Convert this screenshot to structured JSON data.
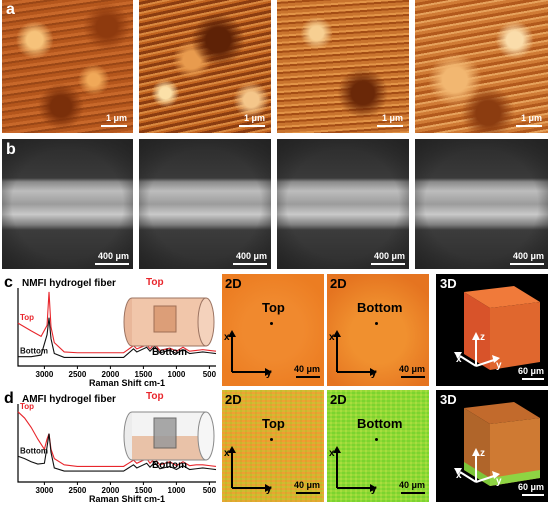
{
  "panel_labels": {
    "a": "a",
    "b": "b",
    "c": "c",
    "d": "d"
  },
  "afm_scale": "1 μm",
  "sem_scale": "400 μm",
  "panel_c": {
    "title": "NMFI hydrogel fiber",
    "map_2d_label": "2D",
    "map_3d_label": "3D",
    "top_label": "Top",
    "bottom_label": "Bottom",
    "scale_2d": "40 μm",
    "scale_3d": "60 μm",
    "axis_x": "x",
    "axis_y": "y",
    "axis_z": "z"
  },
  "panel_d": {
    "title": "AMFI hydrogel fiber",
    "map_2d_label": "2D",
    "map_3d_label": "3D",
    "top_label": "Top",
    "bottom_label": "Bottom",
    "scale_2d": "40 μm",
    "scale_3d": "60 μm",
    "axis_x": "x",
    "axis_y": "y",
    "axis_z": "z"
  },
  "chart_data": [
    {
      "type": "line",
      "xlabel": "Raman Shift cm-1",
      "xticks": [
        3000,
        2500,
        2000,
        1500,
        1000,
        500
      ],
      "xlim": [
        3400,
        400
      ],
      "series": [
        {
          "name": "Top",
          "color": "#e8262c",
          "x": [
            3400,
            3200,
            3050,
            2960,
            2930,
            2900,
            2850,
            2700,
            2500,
            2200,
            1800,
            1650,
            1600,
            1450,
            1400,
            1330,
            1250,
            1100,
            1000,
            900,
            800,
            700,
            600,
            500,
            400
          ],
          "y": [
            0.55,
            0.45,
            0.38,
            0.52,
            0.95,
            0.5,
            0.3,
            0.18,
            0.17,
            0.17,
            0.17,
            0.26,
            0.22,
            0.27,
            0.22,
            0.28,
            0.2,
            0.23,
            0.19,
            0.24,
            0.19,
            0.2,
            0.21,
            0.2,
            0.19
          ]
        },
        {
          "name": "Bottom",
          "color": "#111111",
          "x": [
            3400,
            3200,
            3050,
            2960,
            2930,
            2900,
            2850,
            2700,
            2500,
            2200,
            1800,
            1650,
            1600,
            1450,
            1400,
            1330,
            1250,
            1100,
            1000,
            900,
            800,
            700,
            600,
            500,
            400
          ],
          "y": [
            0.12,
            0.12,
            0.14,
            0.4,
            0.62,
            0.35,
            0.16,
            0.11,
            0.11,
            0.11,
            0.11,
            0.22,
            0.18,
            0.24,
            0.19,
            0.25,
            0.17,
            0.2,
            0.16,
            0.21,
            0.16,
            0.17,
            0.18,
            0.17,
            0.16
          ]
        }
      ]
    },
    {
      "type": "line",
      "xlabel": "Raman Shift cm-1",
      "xticks": [
        3000,
        2500,
        2000,
        1500,
        1000,
        500
      ],
      "xlim": [
        3400,
        400
      ],
      "series": [
        {
          "name": "Top",
          "color": "#e8262c",
          "x": [
            3400,
            3300,
            3200,
            3100,
            3000,
            2960,
            2930,
            2900,
            2850,
            2700,
            2500,
            2200,
            1800,
            1650,
            1600,
            1450,
            1400,
            1330,
            1250,
            1100,
            1000,
            900,
            800,
            700,
            600,
            500,
            400
          ],
          "y": [
            0.9,
            0.82,
            0.7,
            0.55,
            0.42,
            0.55,
            0.62,
            0.42,
            0.3,
            0.22,
            0.2,
            0.2,
            0.2,
            0.28,
            0.24,
            0.3,
            0.24,
            0.3,
            0.22,
            0.26,
            0.21,
            0.26,
            0.21,
            0.22,
            0.22,
            0.21,
            0.2
          ]
        },
        {
          "name": "Bottom",
          "color": "#111111",
          "x": [
            3400,
            3300,
            3200,
            3100,
            3000,
            2960,
            2930,
            2900,
            2850,
            2700,
            2500,
            2200,
            1800,
            1650,
            1600,
            1450,
            1400,
            1330,
            1250,
            1100,
            1000,
            900,
            800,
            700,
            600,
            500,
            400
          ],
          "y": [
            0.33,
            0.3,
            0.26,
            0.23,
            0.24,
            0.45,
            0.62,
            0.38,
            0.18,
            0.14,
            0.14,
            0.14,
            0.14,
            0.22,
            0.18,
            0.24,
            0.19,
            0.25,
            0.17,
            0.2,
            0.16,
            0.21,
            0.16,
            0.17,
            0.18,
            0.17,
            0.16
          ]
        }
      ]
    }
  ]
}
